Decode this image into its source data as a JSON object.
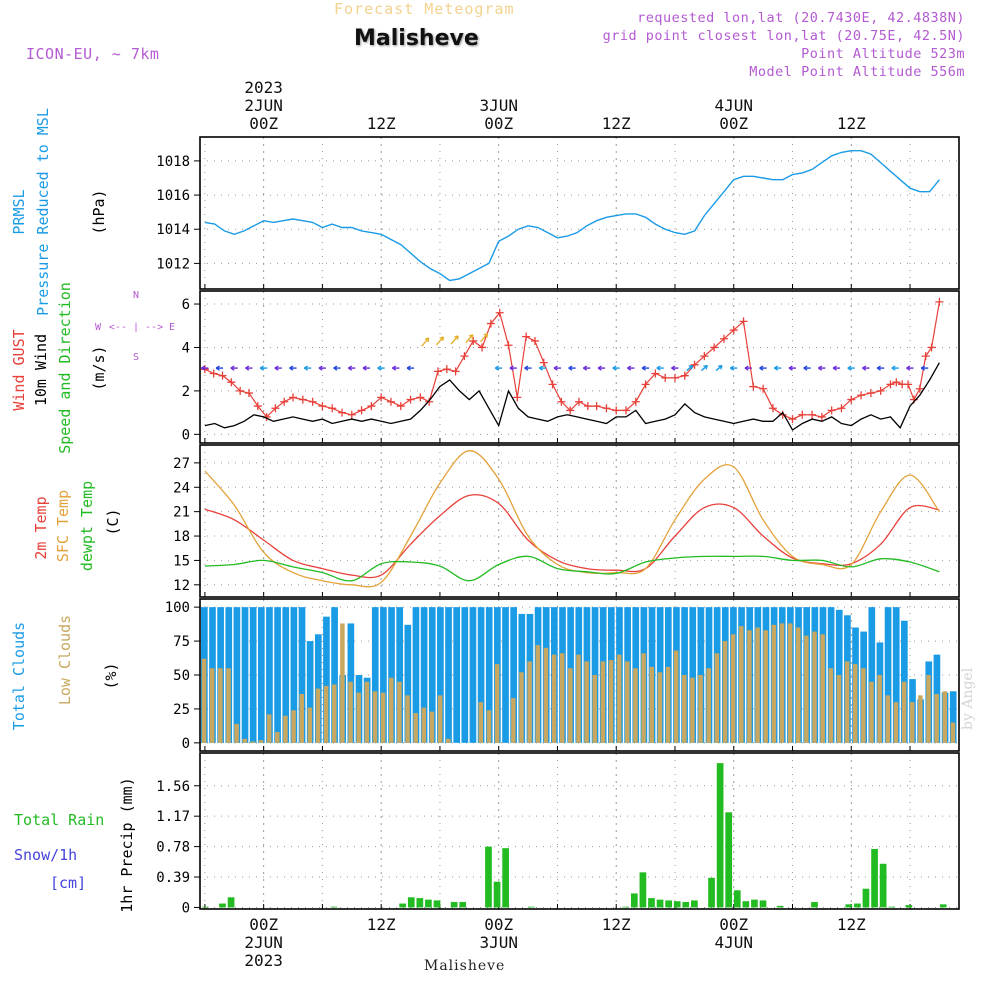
{
  "header": {
    "faint_title": "Forecast Meteogram",
    "title": "Malisheve",
    "model": "ICON-EU, ~ 7km",
    "requested": "requested lon,lat (20.7430E, 42.4838N)",
    "gridpoint": "grid point closest lon,lat (20.75E, 42.5N)",
    "point_alt": "Point Altitude 523m",
    "model_alt": "Model Point Altitude 556m",
    "bottom_name": "Malisheve",
    "credit": "by Angel"
  },
  "colors": {
    "pressure": "#1a9be6",
    "gust": "#e8403a",
    "wind": "#000000",
    "direction": "#22bb22",
    "sfc_temp": "#e3a23a",
    "dewpt": "#22bb22",
    "total_clouds": "#1a9be6",
    "low_clouds": "#c8a860",
    "rain": "#22bb22",
    "snow": "#4444dd",
    "purple": "#b45ad2"
  },
  "chart_data": [
    {
      "type": "line",
      "id": "pressure",
      "ylabel_lines": [
        "PRMSL",
        "Pressure Reduced to MSL",
        "(hPa)"
      ],
      "ylim": [
        1010.5,
        1019.4
      ],
      "yticks": [
        1012,
        1014,
        1016,
        1018
      ],
      "series": [
        {
          "name": "PRMSL",
          "x": [
            0,
            1,
            2,
            3,
            4,
            5,
            6,
            7,
            8,
            9,
            10,
            11,
            12,
            13,
            14,
            15,
            16,
            17,
            18,
            19,
            20,
            21,
            22,
            23,
            24,
            25,
            26,
            27,
            28,
            29,
            30,
            31,
            32,
            33,
            34,
            35,
            36,
            37,
            38,
            39,
            40,
            41,
            42,
            43,
            44,
            45,
            46,
            47,
            48,
            49,
            50,
            51,
            52,
            53,
            54,
            55,
            56,
            57,
            58,
            59,
            60,
            61,
            62,
            63,
            64,
            65,
            66,
            67,
            68,
            69,
            70,
            71,
            72,
            73,
            74,
            75
          ],
          "values": [
            1014.4,
            1014.3,
            1013.9,
            1013.7,
            1013.9,
            1014.2,
            1014.5,
            1014.4,
            1014.5,
            1014.6,
            1014.5,
            1014.4,
            1014.1,
            1014.3,
            1014.1,
            1014.1,
            1013.9,
            1013.8,
            1013.7,
            1013.4,
            1013.1,
            1012.6,
            1012.1,
            1011.7,
            1011.4,
            1011.0,
            1011.1,
            1011.4,
            1011.7,
            1012.0,
            1013.3,
            1013.6,
            1014.0,
            1014.2,
            1014.1,
            1013.8,
            1013.5,
            1013.6,
            1013.8,
            1014.2,
            1014.5,
            1014.7,
            1014.8,
            1014.9,
            1014.9,
            1014.7,
            1014.3,
            1014.0,
            1013.8,
            1013.7,
            1013.9,
            1014.8,
            1015.5,
            1016.2,
            1016.9,
            1017.1,
            1017.1,
            1017.0,
            1016.9,
            1016.9,
            1017.2,
            1017.3,
            1017.5,
            1017.9,
            1018.3,
            1018.5,
            1018.6,
            1018.6,
            1018.4,
            1017.9,
            1017.4,
            1016.9,
            1016.4,
            1016.2,
            1016.2,
            1016.9
          ]
        }
      ]
    },
    {
      "type": "line",
      "id": "wind",
      "ylabel_lines": [
        "Wind GUST",
        "10m Wind",
        "Speed and Direction",
        "(m/s)"
      ],
      "compass": {
        "n": "N",
        "s": "S",
        "w": "W",
        "e": "E",
        "arrow": "<-- | -->"
      },
      "ylim": [
        -0.4,
        6.6
      ],
      "yticks": [
        0,
        2,
        4,
        6
      ],
      "series": [
        {
          "name": "Wind GUST",
          "values": [
            3.0,
            2.8,
            2.7,
            2.4,
            2.0,
            1.9,
            1.3,
            0.8,
            1.2,
            1.5,
            1.7,
            1.6,
            1.5,
            1.3,
            1.2,
            1.0,
            0.9,
            1.1,
            1.3,
            1.7,
            1.5,
            1.3,
            1.6,
            1.7,
            1.5,
            2.9,
            3.0,
            2.9,
            3.6,
            4.3,
            4.0,
            5.1,
            5.6,
            4.1,
            1.7,
            4.5,
            4.3,
            3.3,
            2.3,
            1.5,
            1.1,
            1.5,
            1.3,
            1.3,
            1.2,
            1.1,
            1.1,
            1.5,
            2.3,
            2.8,
            2.6,
            2.6,
            2.7,
            3.2,
            3.6,
            4.0,
            4.4,
            4.8,
            5.2,
            2.2,
            2.1,
            1.2,
            0.9,
            0.7,
            0.9,
            0.9,
            0.8,
            1.1,
            1.2,
            1.6,
            1.8,
            1.9,
            2.0,
            2.3,
            2.4,
            2.3,
            2.3,
            1.6,
            2.1,
            3.6,
            4.0,
            6.1
          ],
          "x": [
            0,
            0.9,
            1.8,
            2.7,
            3.6,
            4.5,
            5.4,
            6.3,
            7.2,
            8.1,
            9,
            10,
            11,
            12,
            13,
            14,
            15,
            16,
            17,
            18,
            19,
            20,
            21,
            22,
            22.9,
            23.8,
            24.7,
            25.6,
            26.5,
            27.4,
            28.3,
            29.2,
            30.1,
            31,
            31.9,
            32.8,
            33.7,
            34.6,
            35.5,
            36.4,
            37.3,
            38.2,
            39.1,
            40,
            41,
            42,
            43,
            44,
            45,
            46,
            47,
            48,
            49,
            50,
            51,
            52,
            53,
            54,
            55,
            56,
            57,
            58,
            59,
            60,
            61,
            62,
            63,
            64,
            65,
            66,
            67,
            68,
            69,
            70,
            70.6,
            71.2,
            71.8,
            72.4,
            73,
            73.6,
            74.2,
            75
          ]
        },
        {
          "name": "10m Wind",
          "x": [
            0,
            1,
            2,
            3,
            4,
            5,
            6,
            7,
            8,
            9,
            10,
            11,
            12,
            13,
            14,
            15,
            16,
            17,
            18,
            19,
            20,
            21,
            22,
            23,
            24,
            25,
            26,
            27,
            28,
            29,
            30,
            31,
            32,
            33,
            34,
            35,
            36,
            37,
            38,
            39,
            40,
            41,
            42,
            43,
            44,
            45,
            46,
            47,
            48,
            49,
            50,
            51,
            52,
            53,
            54,
            55,
            56,
            57,
            58,
            59,
            60,
            61,
            62,
            63,
            64,
            65,
            66,
            67,
            68,
            69,
            70,
            71,
            72,
            73,
            74,
            75
          ],
          "values": [
            0.4,
            0.5,
            0.3,
            0.4,
            0.6,
            0.9,
            0.8,
            0.6,
            0.7,
            0.8,
            0.7,
            0.6,
            0.7,
            0.5,
            0.6,
            0.7,
            0.6,
            0.7,
            0.6,
            0.5,
            0.6,
            0.7,
            1.1,
            1.6,
            2.2,
            2.5,
            2.0,
            1.6,
            2.0,
            1.2,
            0.4,
            2.0,
            1.2,
            0.8,
            0.7,
            0.6,
            0.8,
            0.9,
            0.8,
            0.7,
            0.6,
            0.5,
            0.8,
            0.8,
            1.1,
            0.5,
            0.6,
            0.7,
            0.9,
            1.4,
            1.0,
            0.8,
            0.7,
            0.6,
            0.5,
            0.6,
            0.7,
            0.6,
            0.6,
            1.0,
            0.2,
            0.5,
            0.7,
            0.6,
            0.8,
            0.5,
            0.4,
            0.7,
            0.9,
            0.7,
            0.8,
            0.3,
            1.3,
            1.8,
            2.5,
            3.3
          ]
        }
      ]
    },
    {
      "type": "line",
      "id": "temperature",
      "ylabel_lines": [
        "2m Temp",
        "SFC Temp",
        "dewpt Temp",
        "(C)"
      ],
      "ylim": [
        10.5,
        29.2
      ],
      "yticks": [
        12,
        15,
        18,
        21,
        24,
        27
      ],
      "series": [
        {
          "name": "2m Temp",
          "x": [
            0,
            3,
            6,
            9,
            12,
            15,
            18,
            21,
            24,
            27,
            30,
            33,
            36,
            39,
            42,
            45,
            48,
            51,
            54,
            57,
            60,
            63,
            66,
            69,
            72,
            75
          ],
          "values": [
            21.3,
            20.0,
            17.5,
            15.0,
            14.0,
            13.2,
            13.2,
            17.0,
            20.5,
            23.0,
            22.0,
            17.5,
            15.0,
            14.0,
            13.8,
            14.0,
            18.0,
            21.5,
            21.5,
            18.0,
            15.3,
            14.6,
            14.6,
            17.0,
            21.5,
            21.2
          ]
        },
        {
          "name": "SFC Temp",
          "x": [
            0,
            3,
            6,
            9,
            12,
            15,
            18,
            21,
            24,
            27,
            30,
            33,
            36,
            39,
            42,
            45,
            48,
            51,
            54,
            57,
            60,
            63,
            66,
            69,
            72,
            75
          ],
          "values": [
            26.0,
            21.8,
            16.0,
            13.5,
            12.5,
            12.0,
            12.3,
            18.0,
            24.5,
            28.5,
            25.0,
            18.0,
            14.5,
            13.5,
            13.5,
            14.0,
            20.0,
            25.0,
            26.5,
            20.0,
            15.5,
            14.5,
            14.5,
            21.0,
            25.5,
            21.0
          ]
        },
        {
          "name": "dewpt Temp",
          "x": [
            0,
            3,
            6,
            9,
            12,
            15,
            18,
            21,
            24,
            27,
            30,
            33,
            36,
            39,
            42,
            45,
            48,
            51,
            54,
            57,
            60,
            63,
            66,
            69,
            72,
            75
          ],
          "values": [
            14.3,
            14.5,
            15.0,
            14.2,
            13.5,
            12.5,
            14.6,
            14.8,
            14.3,
            12.5,
            14.5,
            15.5,
            14.0,
            13.6,
            13.4,
            14.8,
            15.3,
            15.5,
            15.5,
            15.5,
            15.0,
            15.0,
            14.2,
            15.2,
            14.8,
            13.6
          ]
        }
      ]
    },
    {
      "type": "bar",
      "id": "clouds",
      "ylabel_lines": [
        "Total Clouds",
        "Low Clouds",
        "(%)"
      ],
      "ylim": [
        -6,
        106
      ],
      "yticks": [
        0,
        25,
        50,
        75,
        100
      ],
      "series": [
        {
          "name": "Total Clouds",
          "values": [
            100,
            100,
            100,
            100,
            100,
            100,
            100,
            100,
            100,
            100,
            100,
            100,
            100,
            75,
            80,
            93,
            100,
            50,
            88,
            50,
            48,
            100,
            100,
            100,
            100,
            87,
            100,
            100,
            100,
            100,
            100,
            100,
            100,
            100,
            100,
            100,
            100,
            100,
            100,
            95,
            95,
            100,
            100,
            100,
            100,
            100,
            100,
            100,
            100,
            100,
            100,
            100,
            100,
            100,
            100,
            100,
            100,
            100,
            100,
            100,
            100,
            100,
            100,
            100,
            100,
            100,
            100,
            100,
            100,
            100,
            100,
            100,
            100,
            100,
            100,
            100,
            100,
            100,
            98,
            94,
            85,
            82,
            100,
            74,
            100,
            100,
            90,
            47,
            32,
            60,
            65,
            37,
            38
          ]
        },
        {
          "name": "Low Clouds",
          "values": [
            62,
            55,
            55,
            55,
            14,
            3,
            1,
            2,
            21,
            8,
            20,
            24,
            36,
            26,
            40,
            42,
            43,
            88,
            45,
            37,
            45,
            38,
            37,
            48,
            45,
            35,
            22,
            26,
            23,
            35,
            3,
            0,
            0,
            0,
            30,
            24,
            58,
            0,
            33,
            52,
            60,
            72,
            70,
            65,
            66,
            55,
            65,
            60,
            50,
            60,
            61,
            65,
            60,
            55,
            66,
            56,
            52,
            56,
            68,
            50,
            48,
            50,
            55,
            66,
            75,
            80,
            86,
            83,
            85,
            83,
            87,
            88,
            88,
            85,
            79,
            82,
            80,
            55,
            50,
            60,
            58,
            55,
            45,
            50,
            35,
            30,
            45,
            30,
            35,
            50,
            36,
            38,
            15
          ]
        }
      ]
    },
    {
      "type": "bar",
      "id": "precip",
      "ylabel_lines": [
        "Total  Rain",
        "Snow/1h",
        "[cm]",
        "1hr Precip (mm)"
      ],
      "ylim": [
        -0.02,
        1.98
      ],
      "yticks": [
        0,
        0.39,
        0.78,
        1.17,
        1.56
      ],
      "ytick_labels": [
        "0",
        "0.39",
        "0.78",
        "1.17",
        "1.56"
      ],
      "series": [
        {
          "name": "1hr Precip",
          "values": [
            0.01,
            0,
            0.05,
            0.13,
            0,
            0,
            0,
            0,
            0,
            0,
            0,
            0,
            0,
            0,
            0,
            0.01,
            0,
            0,
            0,
            0,
            0,
            0,
            0,
            0.05,
            0.13,
            0.12,
            0.1,
            0.09,
            0,
            0.07,
            0.07,
            0,
            0,
            0.78,
            0.33,
            0.76,
            0,
            0,
            0.01,
            0,
            0,
            0,
            0,
            0,
            0,
            0,
            0,
            0,
            0,
            0.01,
            0.18,
            0.45,
            0.12,
            0.1,
            0.09,
            0.08,
            0.07,
            0.09,
            0,
            0.38,
            1.85,
            1.22,
            0.22,
            0.08,
            0.1,
            0.09,
            0,
            0.02,
            0,
            0,
            0,
            0.07,
            0,
            0,
            0,
            0.04,
            0.05,
            0.24,
            0.75,
            0.56,
            0.01,
            0,
            0.03,
            0,
            0,
            0,
            0.04,
            0
          ]
        }
      ]
    }
  ],
  "time_axis": {
    "top_labels": [
      {
        "lines": [
          "2023",
          "2JUN",
          "00Z"
        ],
        "x": 6
      },
      {
        "lines": [
          "12Z"
        ],
        "x": 18
      },
      {
        "lines": [
          "3JUN",
          "00Z"
        ],
        "x": 30
      },
      {
        "lines": [
          "12Z"
        ],
        "x": 42
      },
      {
        "lines": [
          "4JUN",
          "00Z"
        ],
        "x": 54
      },
      {
        "lines": [
          "12Z"
        ],
        "x": 66
      }
    ],
    "bottom_labels": [
      {
        "lines": [
          "00Z",
          "2JUN",
          "2023"
        ],
        "x": 6
      },
      {
        "lines": [
          "12Z"
        ],
        "x": 18
      },
      {
        "lines": [
          "00Z",
          "3JUN"
        ],
        "x": 30
      },
      {
        "lines": [
          "12Z"
        ],
        "x": 42
      },
      {
        "lines": [
          "00Z",
          "4JUN"
        ],
        "x": 54
      },
      {
        "lines": [
          "12Z"
        ],
        "x": 66
      }
    ],
    "xlim": [
      -0.5,
      77
    ]
  }
}
